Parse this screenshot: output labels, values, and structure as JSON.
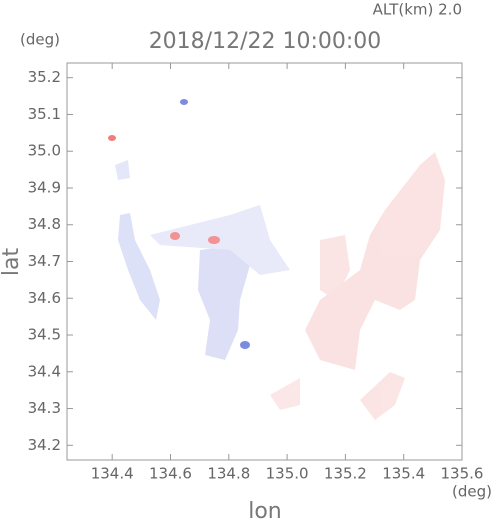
{
  "chart_data": {
    "type": "map",
    "annotation": "ALT(km) 2.0",
    "title": "2018/12/22 10:00:00",
    "x_label": "lon",
    "y_label": "lat",
    "x_unit": "(deg)",
    "y_unit": "(deg)",
    "xlim": [
      134.245,
      135.6
    ],
    "ylim": [
      34.16,
      35.24
    ],
    "xticks": [
      134.4,
      134.6,
      134.8,
      {
        "value": 135,
        "label": "135.0"
      },
      135.2,
      135.4,
      135.6
    ],
    "yticks": [
      34.2,
      34.3,
      34.4,
      34.5,
      34.6,
      34.7,
      34.8,
      34.9,
      {
        "value": 35,
        "label": "35.0"
      },
      35.1,
      35.2
    ]
  }
}
